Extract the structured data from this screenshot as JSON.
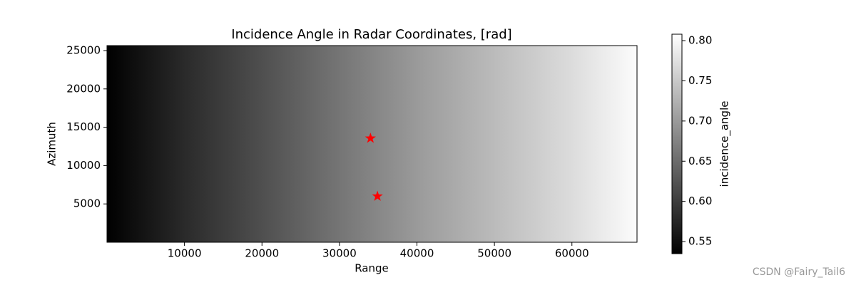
{
  "chart_data": {
    "type": "heatmap",
    "title": "Incidence Angle in Radar Coordinates, [rad]",
    "xlabel": "Range",
    "ylabel": "Azimuth",
    "xlim": [
      0,
      68400
    ],
    "ylim": [
      0,
      25650
    ],
    "xticks": [
      10000,
      20000,
      30000,
      40000,
      50000,
      60000
    ],
    "yticks": [
      5000,
      10000,
      15000,
      20000,
      25000
    ],
    "profile": {
      "x": [
        0,
        10000,
        20000,
        30000,
        40000,
        50000,
        60000,
        68400
      ],
      "values": [
        0.535,
        0.58,
        0.62,
        0.66,
        0.7,
        0.735,
        0.77,
        0.805
      ]
    },
    "colorbar": {
      "label": "incidence_angle",
      "colormap": "gray",
      "clim": [
        0.535,
        0.808
      ],
      "ticks": [
        0.55,
        {
          "value": 0.6,
          "label": "0.60"
        },
        0.65,
        {
          "value": 0.7,
          "label": "0.70"
        },
        0.75,
        {
          "value": 0.8,
          "label": "0.80"
        }
      ]
    },
    "markers": {
      "x": [
        34000,
        34900
      ],
      "y": [
        13560,
        6000
      ],
      "color": "#ff0000",
      "marker": "star"
    },
    "watermark": "CSDN @Fairy_Tail6"
  }
}
